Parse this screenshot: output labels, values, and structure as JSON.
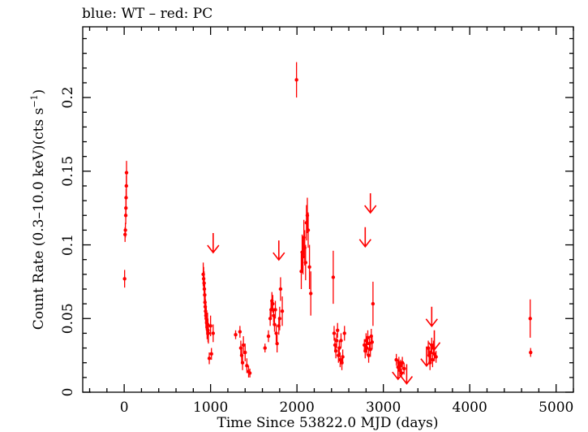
{
  "chart_data": {
    "type": "scatter",
    "title": "blue: WT – red: PC",
    "xlabel": "Time Since 53822.0 MJD (days)",
    "ylabel_prefix": "Count Rate (0.3–10.0 keV)(cts s",
    "ylabel_sup": "−1",
    "ylabel_suffix": ")",
    "xlim": [
      -480,
      5200
    ],
    "ylim": [
      0,
      0.248
    ],
    "x_ticks": [
      0,
      1000,
      2000,
      3000,
      4000,
      5000
    ],
    "x_tick_labels": [
      "0",
      "1000",
      "2000",
      "3000",
      "4000",
      "5000"
    ],
    "y_ticks": [
      0,
      0.05,
      0.1,
      0.15,
      0.2
    ],
    "y_tick_labels": [
      "0",
      "0.05",
      "0.1",
      "0.15",
      "0.2"
    ],
    "series_color": "#ff0000",
    "points": [
      [
        5,
        0.077,
        0.006
      ],
      [
        10,
        0.107,
        0.005
      ],
      [
        14,
        0.11,
        0.005
      ],
      [
        18,
        0.12,
        0.006
      ],
      [
        20,
        0.125,
        0.006
      ],
      [
        22,
        0.132,
        0.006
      ],
      [
        25,
        0.14,
        0.007
      ],
      [
        27,
        0.149,
        0.008
      ],
      [
        915,
        0.08,
        0.008
      ],
      [
        920,
        0.077,
        0.008
      ],
      [
        925,
        0.074,
        0.008
      ],
      [
        928,
        0.07,
        0.008
      ],
      [
        932,
        0.066,
        0.008
      ],
      [
        935,
        0.061,
        0.008
      ],
      [
        938,
        0.058,
        0.008
      ],
      [
        942,
        0.055,
        0.008
      ],
      [
        946,
        0.052,
        0.008
      ],
      [
        950,
        0.05,
        0.008
      ],
      [
        955,
        0.047,
        0.008
      ],
      [
        960,
        0.044,
        0.008
      ],
      [
        965,
        0.046,
        0.008
      ],
      [
        970,
        0.042,
        0.008
      ],
      [
        975,
        0.04,
        0.007
      ],
      [
        985,
        0.023,
        0.004
      ],
      [
        1000,
        0.045,
        0.007
      ],
      [
        1010,
        0.026,
        0.004
      ],
      [
        1030,
        0.04,
        0.006
      ],
      [
        1290,
        0.039,
        0.003
      ],
      [
        1340,
        0.041,
        0.004
      ],
      [
        1350,
        0.03,
        0.005
      ],
      [
        1360,
        0.025,
        0.005
      ],
      [
        1370,
        0.02,
        0.005
      ],
      [
        1380,
        0.032,
        0.006
      ],
      [
        1400,
        0.027,
        0.006
      ],
      [
        1420,
        0.018,
        0.005
      ],
      [
        1440,
        0.014,
        0.004
      ],
      [
        1455,
        0.013,
        0.003
      ],
      [
        1630,
        0.03,
        0.003
      ],
      [
        1670,
        0.038,
        0.004
      ],
      [
        1690,
        0.05,
        0.005
      ],
      [
        1700,
        0.056,
        0.006
      ],
      [
        1710,
        0.062,
        0.006
      ],
      [
        1720,
        0.06,
        0.006
      ],
      [
        1730,
        0.052,
        0.005
      ],
      [
        1740,
        0.046,
        0.005
      ],
      [
        1750,
        0.056,
        0.006
      ],
      [
        1760,
        0.04,
        0.006
      ],
      [
        1770,
        0.033,
        0.006
      ],
      [
        1790,
        0.045,
        0.006
      ],
      [
        1800,
        0.05,
        0.008
      ],
      [
        1810,
        0.07,
        0.008
      ],
      [
        1830,
        0.055,
        0.01
      ],
      [
        1995,
        0.212,
        0.012
      ],
      [
        2050,
        0.082,
        0.012
      ],
      [
        2060,
        0.095,
        0.012
      ],
      [
        2070,
        0.092,
        0.012
      ],
      [
        2080,
        0.105,
        0.012
      ],
      [
        2090,
        0.098,
        0.012
      ],
      [
        2100,
        0.088,
        0.012
      ],
      [
        2110,
        0.115,
        0.012
      ],
      [
        2120,
        0.12,
        0.012
      ],
      [
        2130,
        0.11,
        0.012
      ],
      [
        2145,
        0.085,
        0.015
      ],
      [
        2160,
        0.067,
        0.015
      ],
      [
        2420,
        0.078,
        0.018
      ],
      [
        2430,
        0.04,
        0.005
      ],
      [
        2440,
        0.032,
        0.005
      ],
      [
        2450,
        0.028,
        0.005
      ],
      [
        2460,
        0.035,
        0.005
      ],
      [
        2470,
        0.042,
        0.005
      ],
      [
        2480,
        0.025,
        0.005
      ],
      [
        2490,
        0.03,
        0.005
      ],
      [
        2500,
        0.022,
        0.005
      ],
      [
        2510,
        0.035,
        0.005
      ],
      [
        2520,
        0.02,
        0.005
      ],
      [
        2530,
        0.024,
        0.005
      ],
      [
        2550,
        0.04,
        0.005
      ],
      [
        2780,
        0.032,
        0.004
      ],
      [
        2790,
        0.028,
        0.005
      ],
      [
        2800,
        0.035,
        0.005
      ],
      [
        2810,
        0.03,
        0.005
      ],
      [
        2820,
        0.037,
        0.005
      ],
      [
        2830,
        0.025,
        0.005
      ],
      [
        2840,
        0.033,
        0.005
      ],
      [
        2850,
        0.029,
        0.005
      ],
      [
        2860,
        0.038,
        0.005
      ],
      [
        2870,
        0.034,
        0.005
      ],
      [
        2880,
        0.06,
        0.015
      ],
      [
        3150,
        0.022,
        0.004
      ],
      [
        3170,
        0.017,
        0.004
      ],
      [
        3180,
        0.02,
        0.004
      ],
      [
        3190,
        0.015,
        0.004
      ],
      [
        3200,
        0.018,
        0.004
      ],
      [
        3210,
        0.013,
        0.003
      ],
      [
        3220,
        0.02,
        0.004
      ],
      [
        3240,
        0.016,
        0.004
      ],
      [
        3520,
        0.03,
        0.005
      ],
      [
        3530,
        0.025,
        0.005
      ],
      [
        3540,
        0.02,
        0.005
      ],
      [
        3550,
        0.027,
        0.005
      ],
      [
        3560,
        0.032,
        0.005
      ],
      [
        3570,
        0.022,
        0.005
      ],
      [
        3580,
        0.03,
        0.005
      ],
      [
        3590,
        0.026,
        0.005
      ],
      [
        3610,
        0.024,
        0.004
      ],
      [
        4700,
        0.05,
        0.013
      ],
      [
        4705,
        0.027,
        0.003
      ]
    ],
    "upper_limits": [
      [
        1030,
        0.108
      ],
      [
        1790,
        0.103
      ],
      [
        2790,
        0.112
      ],
      [
        2850,
        0.135
      ],
      [
        3170,
        0.022
      ],
      [
        3270,
        0.019
      ],
      [
        3500,
        0.031
      ],
      [
        3560,
        0.058
      ],
      [
        3590,
        0.042
      ]
    ]
  }
}
